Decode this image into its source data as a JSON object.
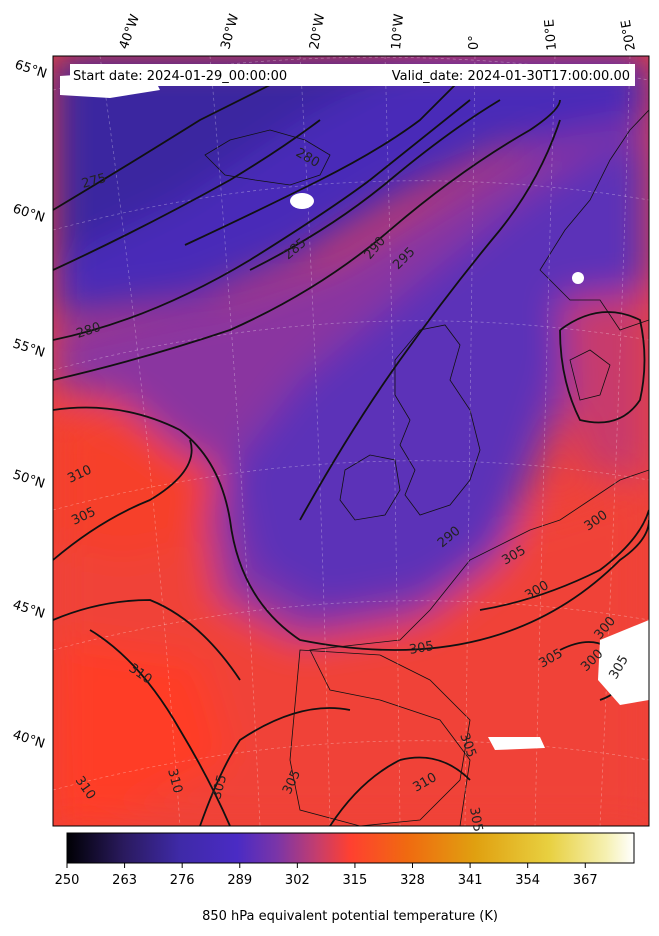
{
  "header": {
    "start_date": "Start date: 2024-01-29_00:00:00",
    "valid_date": "Valid_date: 2024-01-30T17:00:00.00"
  },
  "longitude_labels": [
    "40°W",
    "30°W",
    "20°W",
    "10°W",
    "0°",
    "10°E",
    "20°E"
  ],
  "latitude_labels": [
    "65°N",
    "60°N",
    "55°N",
    "50°N",
    "45°N",
    "40°N"
  ],
  "contour_labels": [
    "275",
    "280",
    "285",
    "290",
    "295",
    "280",
    "310",
    "305",
    "310",
    "310",
    "310",
    "305",
    "305",
    "305",
    "305",
    "290",
    "300",
    "305",
    "305",
    "300",
    "300",
    "310",
    "305",
    "305",
    "300"
  ],
  "colorbar": {
    "label": "850 hPa equivalent potential temperature (K)",
    "ticks": [
      "250",
      "263",
      "276",
      "289",
      "302",
      "315",
      "328",
      "341",
      "354",
      "367"
    ],
    "range": [
      250,
      378
    ],
    "stops": [
      "#000004",
      "#2a1a5e",
      "#3f2aa8",
      "#4a2bc4",
      "#7a35a8",
      "#c43d6e",
      "#ff4030",
      "#f06a10",
      "#e0a010",
      "#e8d040",
      "#f5f0b0",
      "#ffffff"
    ]
  },
  "chart_data": {
    "type": "heatmap",
    "variable": "850 hPa equivalent potential temperature (K)",
    "value_range": [
      250,
      378
    ],
    "contour_levels": [
      275,
      280,
      285,
      290,
      295,
      300,
      305,
      310
    ],
    "lon_ticks": [
      -40,
      -30,
      -20,
      -10,
      0,
      10,
      20
    ],
    "lat_ticks": [
      65,
      60,
      55,
      50,
      45,
      40
    ]
  }
}
